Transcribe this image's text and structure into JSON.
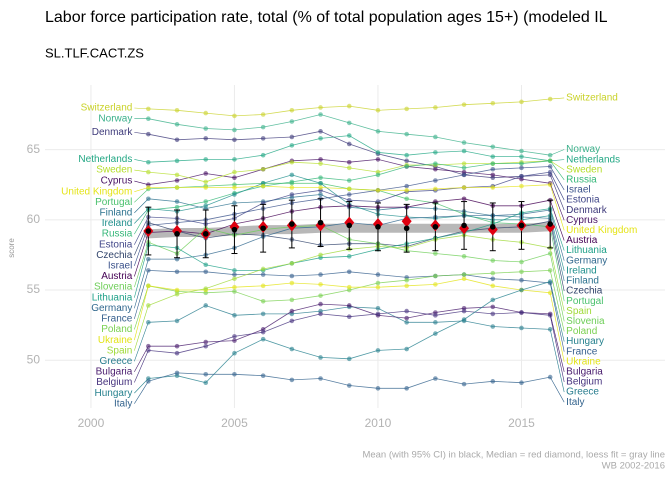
{
  "chart_data": {
    "type": "line",
    "title": "Labor force participation rate, total (% of total population ages 15+) (modeled IL",
    "subtitle": "SL.TLF.CACT.ZS",
    "y_label": "score",
    "caption": [
      "Mean (with 95% CI) in black, Median = red diamond, loess fit = gray line",
      "WB 2002-2016"
    ],
    "x": [
      2002,
      2003,
      2004,
      2005,
      2006,
      2007,
      2008,
      2009,
      2010,
      2011,
      2012,
      2013,
      2014,
      2015,
      2016
    ],
    "xlim": [
      1998.4,
      2020.0
    ],
    "xticks": [
      2000,
      2005,
      2010,
      2015
    ],
    "ylim": [
      46.6,
      69.6
    ],
    "yticks": [
      50,
      55,
      60,
      65
    ],
    "grid": true,
    "series": [
      {
        "name": "Switzerland",
        "color": "#c9d22a",
        "values": [
          67.9,
          67.8,
          67.6,
          67.4,
          67.5,
          67.8,
          68.0,
          68.1,
          67.8,
          67.9,
          68.0,
          68.2,
          68.3,
          68.4,
          68.6
        ]
      },
      {
        "name": "Norway",
        "color": "#3bb08a",
        "values": [
          67.2,
          66.8,
          66.5,
          66.4,
          66.6,
          67.0,
          67.5,
          66.9,
          66.3,
          66.1,
          65.9,
          65.5,
          65.2,
          64.9,
          64.6
        ]
      },
      {
        "name": "Denmark",
        "color": "#3e3a7a",
        "values": [
          66.1,
          65.7,
          65.8,
          65.7,
          65.8,
          65.9,
          66.3,
          65.4,
          64.7,
          64.2,
          63.8,
          63.2,
          63.0,
          63.1,
          63.2
        ]
      },
      {
        "name": "Netherlands",
        "color": "#22a784",
        "values": [
          64.1,
          64.2,
          64.3,
          64.3,
          64.6,
          65.3,
          65.8,
          66.0,
          64.8,
          64.6,
          64.8,
          64.9,
          64.5,
          64.5,
          64.2
        ]
      },
      {
        "name": "Cyprus",
        "color": "#471164",
        "values": [
          62.5,
          62.8,
          63.3,
          63.0,
          63.6,
          64.2,
          64.3,
          64.1,
          64.3,
          63.8,
          63.6,
          63.4,
          63.2,
          62.9,
          62.6
        ]
      },
      {
        "name": "Finland",
        "color": "#2c728e",
        "values": [
          61.5,
          61.3,
          60.8,
          61.2,
          61.3,
          61.6,
          61.8,
          60.9,
          60.7,
          60.9,
          60.8,
          60.6,
          60.3,
          60.2,
          60.1
        ]
      },
      {
        "name": "Portugal",
        "color": "#4ac16d",
        "values": [
          62.2,
          62.3,
          62.4,
          62.5,
          62.6,
          62.6,
          62.6,
          62.2,
          62.1,
          61.5,
          61.2,
          60.4,
          59.8,
          59.7,
          59.5
        ]
      },
      {
        "name": "Sweden",
        "color": "#b5de2b",
        "values": [
          63.4,
          63.2,
          62.7,
          63.4,
          63.6,
          64.1,
          64.0,
          63.7,
          63.4,
          63.9,
          63.9,
          64.0,
          64.0,
          64.1,
          64.2
        ]
      },
      {
        "name": "Russia",
        "color": "#35b779",
        "values": [
          60.7,
          60.9,
          61.3,
          61.9,
          62.4,
          62.7,
          63.0,
          62.8,
          63.2,
          63.8,
          64.0,
          63.7,
          64.0,
          64.0,
          64.2
        ]
      },
      {
        "name": "Ireland",
        "color": "#21908d",
        "values": [
          60.8,
          60.6,
          61.0,
          61.8,
          62.6,
          63.2,
          62.6,
          61.1,
          60.4,
          60.2,
          60.1,
          60.3,
          60.0,
          60.0,
          60.3
        ]
      },
      {
        "name": "Israel",
        "color": "#3b528b",
        "values": [
          59.6,
          59.8,
          60.0,
          60.4,
          60.8,
          61.2,
          61.5,
          61.8,
          62.1,
          62.4,
          62.8,
          63.2,
          63.6,
          63.7,
          63.8
        ]
      },
      {
        "name": "Austria",
        "color": "#440154",
        "values": [
          59.1,
          59.2,
          59.0,
          59.7,
          60.1,
          60.6,
          60.9,
          61.0,
          60.9,
          60.9,
          61.3,
          61.5,
          61.0,
          61.0,
          61.4
        ]
      },
      {
        "name": "Czechia",
        "color": "#31446b",
        "values": [
          59.8,
          59.2,
          58.7,
          59.0,
          58.9,
          58.6,
          58.2,
          58.3,
          58.3,
          58.1,
          58.7,
          59.2,
          59.4,
          59.5,
          59.9
        ]
      },
      {
        "name": "Germany",
        "color": "#31688e",
        "values": [
          57.2,
          57.2,
          57.5,
          58.0,
          58.8,
          59.4,
          59.5,
          59.8,
          59.6,
          60.1,
          60.2,
          60.3,
          60.3,
          60.4,
          60.7
        ]
      },
      {
        "name": "Slovenia",
        "color": "#6ece58",
        "values": [
          58.4,
          57.6,
          59.4,
          58.9,
          59.3,
          59.5,
          59.6,
          58.6,
          58.3,
          57.8,
          57.6,
          57.4,
          57.1,
          57.0,
          57.6
        ]
      },
      {
        "name": "Estonia",
        "color": "#404688",
        "values": [
          60.2,
          60.1,
          59.7,
          60.1,
          61.2,
          61.8,
          62.1,
          61.4,
          61.3,
          62.0,
          62.1,
          62.3,
          62.4,
          63.1,
          63.4
        ]
      },
      {
        "name": "Lithuania",
        "color": "#1fa088",
        "values": [
          58.2,
          58.0,
          56.8,
          56.4,
          56.4,
          56.9,
          57.3,
          57.4,
          57.9,
          58.3,
          58.7,
          59.1,
          59.7,
          60.5,
          60.8
        ]
      },
      {
        "name": "France",
        "color": "#355f8d",
        "values": [
          56.4,
          56.3,
          56.3,
          56.1,
          56.1,
          56.0,
          56.1,
          56.3,
          56.1,
          55.9,
          56.0,
          56.1,
          55.8,
          55.7,
          55.5
        ]
      },
      {
        "name": "Poland",
        "color": "#7ad151",
        "values": [
          55.3,
          54.9,
          54.8,
          54.9,
          54.2,
          54.3,
          54.6,
          55.0,
          55.5,
          55.7,
          56.0,
          56.1,
          56.2,
          56.3,
          56.4
        ]
      },
      {
        "name": "Ukraine",
        "color": "#e3e418",
        "values": [
          55.3,
          55.0,
          55.0,
          55.2,
          55.3,
          55.5,
          55.4,
          55.2,
          55.2,
          55.3,
          55.4,
          55.8,
          55.3,
          55.0,
          54.8
        ]
      },
      {
        "name": "Spain",
        "color": "#a0da39",
        "values": [
          53.9,
          54.7,
          55.1,
          55.8,
          56.5,
          56.9,
          57.5,
          57.9,
          58.1,
          58.0,
          58.6,
          58.9,
          58.6,
          58.4,
          58.0
        ]
      },
      {
        "name": "Greece",
        "color": "#287d8e",
        "values": [
          52.7,
          52.8,
          53.9,
          53.2,
          53.3,
          53.3,
          53.5,
          53.8,
          53.7,
          52.7,
          52.7,
          52.8,
          52.4,
          52.3,
          52.2
        ]
      },
      {
        "name": "Bulgaria",
        "color": "#481b6d",
        "values": [
          51.0,
          51.0,
          51.3,
          51.4,
          52.2,
          53.5,
          54.0,
          53.9,
          53.2,
          53.0,
          53.4,
          53.7,
          53.8,
          53.4,
          53.3
        ]
      },
      {
        "name": "Belgium",
        "color": "#46327e",
        "values": [
          50.7,
          50.5,
          51.0,
          51.7,
          52.0,
          52.8,
          53.3,
          53.1,
          53.3,
          53.5,
          53.2,
          53.5,
          53.3,
          53.4,
          53.2
        ]
      },
      {
        "name": "Hungary",
        "color": "#26818e",
        "values": [
          48.7,
          48.9,
          48.4,
          50.5,
          51.5,
          50.8,
          50.2,
          50.1,
          50.7,
          50.8,
          51.9,
          52.9,
          54.3,
          55.0,
          55.6
        ]
      },
      {
        "name": "Italy",
        "color": "#33638d",
        "values": [
          48.5,
          49.1,
          49.0,
          49.0,
          48.9,
          48.6,
          48.7,
          48.2,
          48.0,
          48.0,
          48.7,
          48.3,
          48.5,
          48.4,
          48.8
        ]
      },
      {
        "name": "United Kingdom",
        "color": "#e5e419",
        "values": [
          62.3,
          62.3,
          62.3,
          62.3,
          62.4,
          62.3,
          62.3,
          62.2,
          62.1,
          62.1,
          62.2,
          62.3,
          62.3,
          62.4,
          62.5
        ]
      }
    ],
    "summary": {
      "mean": [
        59.2,
        59.0,
        59.0,
        59.3,
        59.4,
        59.7,
        59.8,
        59.6,
        59.5,
        59.4,
        59.5,
        59.6,
        59.5,
        59.6,
        59.7
      ],
      "ci_low": [
        57.5,
        57.3,
        57.3,
        57.6,
        57.7,
        58.0,
        58.1,
        57.9,
        57.8,
        57.7,
        57.8,
        57.9,
        57.8,
        57.9,
        58.0
      ],
      "ci_high": [
        60.9,
        60.7,
        60.7,
        61.0,
        61.1,
        61.4,
        61.5,
        61.3,
        61.2,
        61.1,
        61.2,
        61.3,
        61.2,
        61.3,
        61.4
      ],
      "median": [
        59.2,
        59.2,
        59.0,
        59.5,
        59.5,
        59.6,
        59.6,
        59.8,
        59.7,
        59.9,
        59.6,
        59.4,
        59.3,
        59.6,
        59.5
      ],
      "loess": [
        59.0,
        59.1,
        59.1,
        59.2,
        59.3,
        59.3,
        59.4,
        59.4,
        59.4,
        59.4,
        59.4,
        59.4,
        59.4,
        59.4,
        59.5
      ],
      "mean_color": "#000000",
      "median_color": "#e0000f",
      "loess_color": "#b8b8b8"
    }
  }
}
